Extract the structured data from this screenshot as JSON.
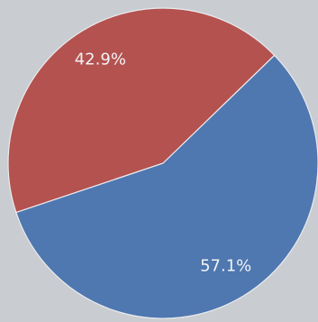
{
  "chart_data": {
    "type": "pie",
    "slices": [
      {
        "label": "42.9%",
        "value": 42.9,
        "color": "#b4524f"
      },
      {
        "label": "57.1%",
        "value": 57.1,
        "color": "#4f77b0"
      }
    ]
  },
  "colors": {
    "background": "#c9ccd0",
    "separator": "#e9ebee"
  }
}
